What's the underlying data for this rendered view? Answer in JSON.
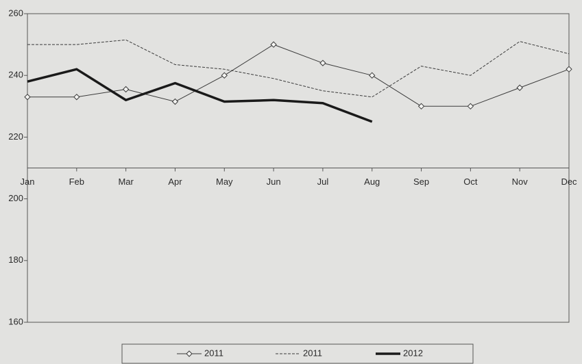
{
  "chart_data": {
    "type": "line",
    "categories": [
      "Jan",
      "Feb",
      "Mar",
      "Apr",
      "May",
      "Jun",
      "Jul",
      "Aug",
      "Sep",
      "Oct",
      "Nov",
      "Dec"
    ],
    "series": [
      {
        "name": "2011",
        "color": "#3a3a3a",
        "line_style": "solid",
        "line_width": "thin",
        "marker": "diamond",
        "values": [
          233,
          233,
          235.5,
          231.5,
          240,
          250,
          244,
          240,
          230,
          230,
          236,
          242
        ]
      },
      {
        "name": "2011",
        "color": "#3a3a3a",
        "line_style": "dashed",
        "line_width": "thin",
        "marker": "none",
        "values": [
          250,
          250,
          251.5,
          243.5,
          242,
          239,
          235,
          233,
          243,
          240,
          251,
          247
        ]
      },
      {
        "name": "2012",
        "color": "#1a1a1a",
        "line_style": "solid",
        "line_width": "thick",
        "marker": "none",
        "values": [
          238,
          242,
          232,
          237.5,
          231.5,
          232,
          231,
          225,
          null,
          null,
          null,
          null
        ]
      }
    ],
    "ylim": [
      160,
      260
    ],
    "yticks": [
      160,
      180,
      200,
      220,
      240,
      260
    ],
    "x_axis_crosses": 210,
    "grid": false,
    "legend": "bottom"
  }
}
